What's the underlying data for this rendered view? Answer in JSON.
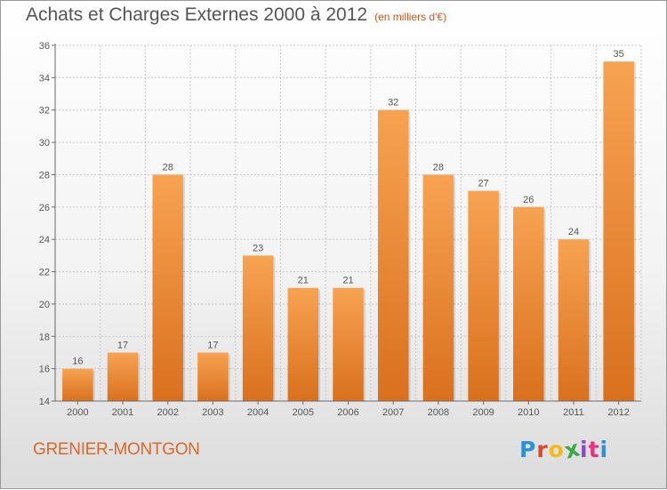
{
  "header": {
    "title": "Achats et Charges Externes 2000 à 2012",
    "subtitle": "(en milliers d'€)"
  },
  "footer": {
    "commune": "GRENIER-MONTGON",
    "logo": {
      "letters": [
        "P",
        "r",
        "o",
        "x",
        "i",
        "t",
        "i"
      ],
      "colors": [
        "#2f8fd8",
        "#e0482b",
        "#f2b81c",
        "#3aa849",
        "#8a4cc1",
        "#e2357d",
        "#2f8fd8"
      ]
    }
  },
  "colors": {
    "bar_top": "#f7a352",
    "bar_bottom": "#d9701e",
    "grid": "#c8c8c8",
    "axis": "#6a6a6a",
    "text": "#555555"
  },
  "chart_data": {
    "type": "bar",
    "title": "Achats et Charges Externes 2000 à 2012",
    "subtitle": "(en milliers d'€)",
    "categories": [
      "2000",
      "2001",
      "2002",
      "2003",
      "2004",
      "2005",
      "2006",
      "2007",
      "2008",
      "2009",
      "2010",
      "2011",
      "2012"
    ],
    "values": [
      16,
      17,
      28,
      17,
      23,
      21,
      21,
      32,
      28,
      27,
      26,
      24,
      35
    ],
    "xlabel": "",
    "ylabel": "",
    "ylim": [
      14,
      36
    ],
    "yticks": [
      14,
      16,
      18,
      20,
      22,
      24,
      26,
      28,
      30,
      32,
      34,
      36
    ],
    "grid": true,
    "data_labels": true
  }
}
